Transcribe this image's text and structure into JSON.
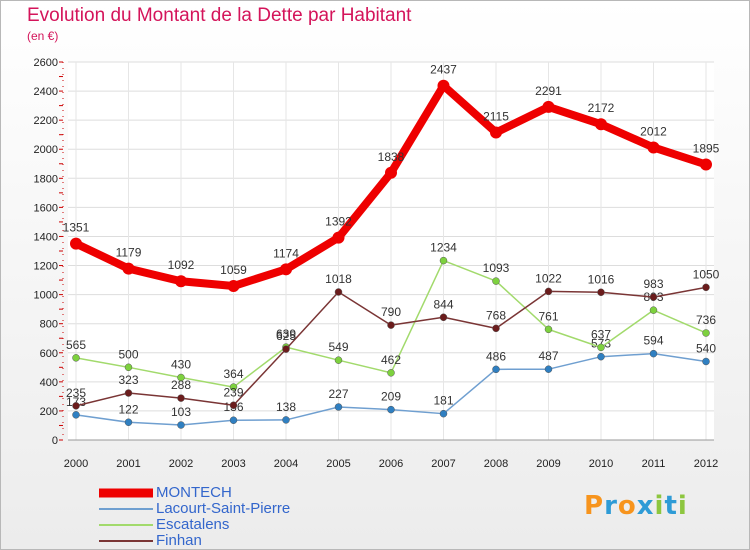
{
  "title": "Evolution du Montant de la Dette par Habitant",
  "subtitle": "(en €)",
  "logo": {
    "text": "Proxiti",
    "letters": [
      {
        "ch": "P",
        "color": "#f7941d"
      },
      {
        "ch": "r",
        "color": "#2e9bd6"
      },
      {
        "ch": "o",
        "color": "#f7941d"
      },
      {
        "ch": "x",
        "color": "#2e9bd6"
      },
      {
        "ch": "i",
        "color": "#8dc63f"
      },
      {
        "ch": "t",
        "color": "#2e9bd6"
      },
      {
        "ch": "i",
        "color": "#8dc63f"
      }
    ]
  },
  "chart_data": {
    "type": "line",
    "title": "Evolution du Montant de la Dette par Habitant",
    "ylabel": "(en €)",
    "xlabel": "",
    "x": [
      "2000",
      "2001",
      "2002",
      "2003",
      "2004",
      "2005",
      "2006",
      "2007",
      "2008",
      "2009",
      "2010",
      "2011",
      "2012"
    ],
    "ylim": [
      0,
      2600
    ],
    "yticks": [
      0,
      200,
      400,
      600,
      800,
      1000,
      1200,
      1400,
      1600,
      1800,
      2000,
      2200,
      2400,
      2600
    ],
    "grid": true,
    "legend_position": "bottom-left",
    "series": [
      {
        "name": "MONTECH",
        "color": "#ee0000",
        "highlight": true,
        "values": [
          1351,
          1179,
          1092,
          1059,
          1174,
          1392,
          1838,
          2437,
          2115,
          2291,
          2172,
          2012,
          1895
        ],
        "labels": [
          "1351",
          "1179",
          "1092",
          "1059",
          "1174",
          "1392",
          "1838",
          "2437",
          "2115",
          "2291",
          "2172",
          "2012",
          "1895"
        ]
      },
      {
        "name": "Lacourt-Saint-Pierre",
        "color": "#6f9fd0",
        "marker": "#2f7fc1",
        "values": [
          173,
          122,
          103,
          136,
          138,
          227,
          209,
          181,
          486,
          487,
          573,
          594,
          540
        ],
        "labels": [
          "173",
          "122",
          "103",
          "136",
          "138",
          "227",
          "209",
          "181",
          "486",
          "487",
          "573",
          "594",
          "540"
        ]
      },
      {
        "name": "Escatalens",
        "color": "#a2da6c",
        "marker": "#7dd13e",
        "values": [
          565,
          500,
          430,
          364,
          639,
          549,
          462,
          1234,
          1093,
          761,
          637,
          893,
          736
        ],
        "labels": [
          "565",
          "500",
          "430",
          "364",
          "639",
          "549",
          "462",
          "1234",
          "1093",
          "761",
          "637",
          "893",
          "736"
        ]
      },
      {
        "name": "Finhan",
        "color": "#7a3535",
        "marker": "#6b1c1c",
        "values": [
          235,
          323,
          288,
          239,
          625,
          1018,
          790,
          844,
          768,
          1022,
          1016,
          983,
          1050
        ],
        "labels": [
          "235",
          "323",
          "288",
          "239",
          "625",
          "1018",
          "790",
          "844",
          "768",
          "1022",
          "1016",
          "983",
          "1050"
        ]
      }
    ]
  }
}
